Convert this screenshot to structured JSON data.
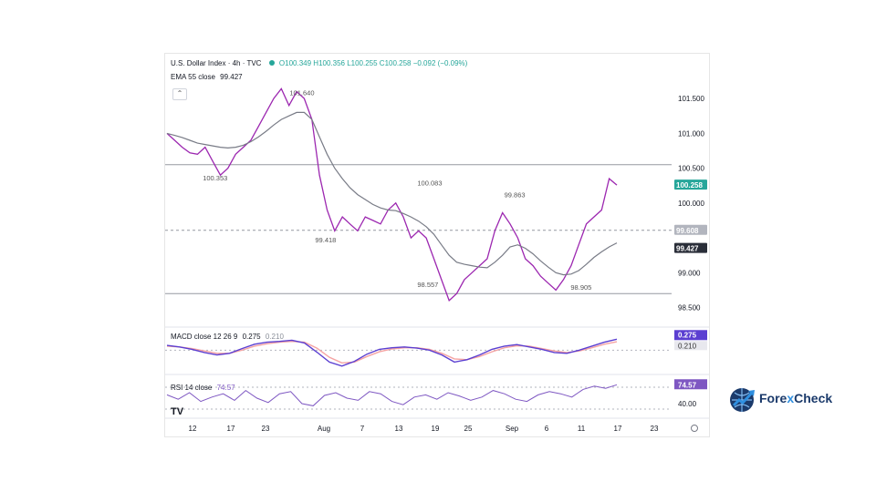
{
  "header": {
    "symbol": "U.S. Dollar Index · 4h · TVC",
    "ohlc": "O100.349 H100.356 L100.255 C100.258 −0.092 (−0.09%)",
    "ema_label": "EMA 55 close",
    "ema_value": "99.427"
  },
  "macd": {
    "label": "MACD close 12 26 9",
    "value1": "0.275",
    "value2": "0.210"
  },
  "rsi": {
    "label": "RSI 14 close",
    "value": "74.57"
  },
  "brand": {
    "part1": "Fore",
    "part2": "x",
    "part3": "Check"
  },
  "colors": {
    "price": "#9c27b0",
    "ema": "#787b86",
    "accent_green": "#26a69a",
    "label_bg": "#2a2e39",
    "macd": "#5b3fd1",
    "rsi": "#7e57c2"
  },
  "chart_data": {
    "type": "line",
    "x_ticks": [
      "12",
      "17",
      "23",
      "Aug",
      "7",
      "13",
      "19",
      "25",
      "Sep",
      "6",
      "11",
      "17",
      "23"
    ],
    "y_ticks": [
      "101.500",
      "101.000",
      "100.500",
      "100.000",
      "99.000",
      "98.500"
    ],
    "ylim": [
      98.35,
      101.75
    ],
    "series": [
      {
        "name": "U.S. Dollar Index",
        "values": [
          101.0,
          100.9,
          100.8,
          100.72,
          100.7,
          100.8,
          100.6,
          100.4,
          100.5,
          100.7,
          100.8,
          100.9,
          101.1,
          101.3,
          101.5,
          101.64,
          101.4,
          101.6,
          101.5,
          101.2,
          100.4,
          99.9,
          99.6,
          99.8,
          99.7,
          99.6,
          99.8,
          99.75,
          99.7,
          99.9,
          100.0,
          99.8,
          99.5,
          99.6,
          99.5,
          99.2,
          98.9,
          98.6,
          98.7,
          98.9,
          99.0,
          99.1,
          99.2,
          99.6,
          99.86,
          99.7,
          99.5,
          99.2,
          99.1,
          98.95,
          98.85,
          98.75,
          98.9,
          99.1,
          99.4,
          99.7,
          99.8,
          99.9,
          100.35,
          100.258
        ],
        "color": "#9c27b0"
      },
      {
        "name": "EMA 55 close",
        "values": [
          101.0,
          100.97,
          100.94,
          100.9,
          100.86,
          100.84,
          100.82,
          100.8,
          100.79,
          100.8,
          100.83,
          100.88,
          100.95,
          101.03,
          101.12,
          101.2,
          101.25,
          101.3,
          101.3,
          101.2,
          100.95,
          100.7,
          100.5,
          100.35,
          100.22,
          100.12,
          100.05,
          99.98,
          99.93,
          99.9,
          99.89,
          99.85,
          99.8,
          99.74,
          99.66,
          99.55,
          99.4,
          99.25,
          99.15,
          99.12,
          99.1,
          99.08,
          99.07,
          99.15,
          99.25,
          99.37,
          99.4,
          99.35,
          99.27,
          99.17,
          99.08,
          99.0,
          98.97,
          98.98,
          99.03,
          99.12,
          99.22,
          99.3,
          99.37,
          99.427
        ],
        "color": "#787b86"
      }
    ],
    "horizontal_levels": [
      100.55,
      99.608,
      98.7
    ],
    "annotations": [
      "101.640",
      "100.353",
      "100.083",
      "99.863",
      "99.418",
      "98.557",
      "98.905"
    ],
    "price_labels": [
      {
        "text": "100.258",
        "value": 100.258,
        "style": "green"
      },
      {
        "text": "99.608",
        "value": 99.608,
        "style": "gray"
      },
      {
        "text": "99.427",
        "value": 99.427,
        "style": "dark"
      }
    ],
    "macd_values": [
      0.12,
      0.08,
      0.02,
      -0.06,
      -0.12,
      -0.08,
      0.04,
      0.15,
      0.2,
      0.22,
      0.25,
      0.18,
      -0.05,
      -0.3,
      -0.4,
      -0.28,
      -0.1,
      0.02,
      0.06,
      0.08,
      0.05,
      0.0,
      -0.12,
      -0.3,
      -0.24,
      -0.12,
      0.02,
      0.1,
      0.14,
      0.08,
      0.02,
      -0.06,
      -0.08,
      0.0,
      0.1,
      0.2,
      0.275
    ],
    "macd_signal": [
      0.1,
      0.08,
      0.04,
      -0.02,
      -0.08,
      -0.08,
      0.0,
      0.1,
      0.16,
      0.2,
      0.22,
      0.2,
      0.05,
      -0.18,
      -0.32,
      -0.3,
      -0.16,
      -0.04,
      0.03,
      0.06,
      0.06,
      0.02,
      -0.08,
      -0.22,
      -0.24,
      -0.16,
      -0.04,
      0.06,
      0.11,
      0.1,
      0.04,
      -0.02,
      -0.06,
      -0.02,
      0.06,
      0.15,
      0.21
    ],
    "rsi_values": [
      56,
      48,
      60,
      44,
      52,
      58,
      46,
      64,
      50,
      42,
      58,
      62,
      40,
      36,
      55,
      60,
      50,
      46,
      62,
      58,
      44,
      38,
      52,
      56,
      48,
      60,
      54,
      46,
      52,
      64,
      58,
      48,
      44,
      56,
      62,
      58,
      52,
      66,
      72,
      68,
      74.57
    ],
    "rsi_ticks": [
      "40.00"
    ]
  }
}
